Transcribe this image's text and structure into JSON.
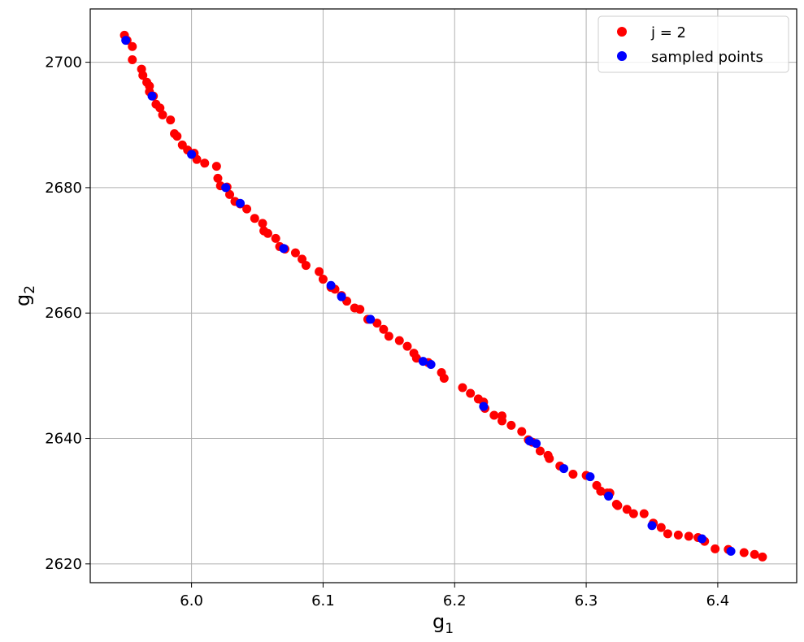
{
  "chart_data": {
    "type": "scatter",
    "title": "",
    "xlabel": "g",
    "xlabel_sub": "1",
    "ylabel": "g",
    "ylabel_sub": "2",
    "xlim": [
      5.923,
      6.46
    ],
    "ylim": [
      2617,
      2708.5
    ],
    "x_ticks": [
      6.0,
      6.1,
      6.2,
      6.3,
      6.4
    ],
    "x_tick_labels": [
      "6.0",
      "6.1",
      "6.2",
      "6.3",
      "6.4"
    ],
    "y_ticks": [
      2620,
      2640,
      2660,
      2680,
      2700
    ],
    "y_tick_labels": [
      "2620",
      "2640",
      "2660",
      "2680",
      "2700"
    ],
    "grid": true,
    "legend": "top-right",
    "series": [
      {
        "name": "j = 2",
        "color": "#ff0000",
        "points": [
          [
            5.949,
            2704.3
          ],
          [
            5.951,
            2703.5
          ],
          [
            5.955,
            2702.5
          ],
          [
            5.955,
            2700.4
          ],
          [
            5.962,
            2698.9
          ],
          [
            5.963,
            2697.9
          ],
          [
            5.966,
            2696.8
          ],
          [
            5.968,
            2696.2
          ],
          [
            5.968,
            2695.3
          ],
          [
            5.971,
            2694.6
          ],
          [
            5.973,
            2693.3
          ],
          [
            5.976,
            2692.7
          ],
          [
            5.978,
            2691.6
          ],
          [
            5.984,
            2690.8
          ],
          [
            5.987,
            2688.6
          ],
          [
            5.989,
            2688.2
          ],
          [
            5.993,
            2686.8
          ],
          [
            5.997,
            2686.0
          ],
          [
            6.002,
            2685.5
          ],
          [
            6.004,
            2684.5
          ],
          [
            6.01,
            2683.9
          ],
          [
            6.019,
            2683.4
          ],
          [
            6.02,
            2681.5
          ],
          [
            6.022,
            2680.3
          ],
          [
            6.027,
            2680.1
          ],
          [
            6.029,
            2678.9
          ],
          [
            6.033,
            2677.8
          ],
          [
            6.037,
            2677.4
          ],
          [
            6.042,
            2676.6
          ],
          [
            6.048,
            2675.1
          ],
          [
            6.054,
            2674.3
          ],
          [
            6.055,
            2673.1
          ],
          [
            6.058,
            2672.7
          ],
          [
            6.064,
            2671.9
          ],
          [
            6.067,
            2670.6
          ],
          [
            6.071,
            2670.2
          ],
          [
            6.079,
            2669.6
          ],
          [
            6.084,
            2668.6
          ],
          [
            6.087,
            2667.6
          ],
          [
            6.097,
            2666.6
          ],
          [
            6.1,
            2665.4
          ],
          [
            6.106,
            2664.1
          ],
          [
            6.109,
            2663.8
          ],
          [
            6.114,
            2662.8
          ],
          [
            6.118,
            2661.9
          ],
          [
            6.124,
            2660.8
          ],
          [
            6.128,
            2660.6
          ],
          [
            6.134,
            2659.0
          ],
          [
            6.141,
            2658.4
          ],
          [
            6.146,
            2657.4
          ],
          [
            6.15,
            2656.3
          ],
          [
            6.158,
            2655.6
          ],
          [
            6.164,
            2654.7
          ],
          [
            6.169,
            2653.6
          ],
          [
            6.171,
            2652.8
          ],
          [
            6.18,
            2652.1
          ],
          [
            6.19,
            2650.5
          ],
          [
            6.192,
            2649.6
          ],
          [
            6.206,
            2648.1
          ],
          [
            6.212,
            2647.2
          ],
          [
            6.218,
            2646.3
          ],
          [
            6.222,
            2645.8
          ],
          [
            6.223,
            2644.8
          ],
          [
            6.23,
            2643.7
          ],
          [
            6.236,
            2643.6
          ],
          [
            6.236,
            2642.8
          ],
          [
            6.243,
            2642.1
          ],
          [
            6.251,
            2641.1
          ],
          [
            6.256,
            2639.8
          ],
          [
            6.259,
            2639.4
          ],
          [
            6.265,
            2638.0
          ],
          [
            6.271,
            2637.3
          ],
          [
            6.272,
            2636.8
          ],
          [
            6.28,
            2635.6
          ],
          [
            6.29,
            2634.3
          ],
          [
            6.3,
            2634.1
          ],
          [
            6.308,
            2632.5
          ],
          [
            6.311,
            2631.6
          ],
          [
            6.316,
            2631.3
          ],
          [
            6.318,
            2631.3
          ],
          [
            6.323,
            2629.5
          ],
          [
            6.324,
            2629.3
          ],
          [
            6.331,
            2628.7
          ],
          [
            6.336,
            2628.0
          ],
          [
            6.344,
            2628.0
          ],
          [
            6.351,
            2626.5
          ],
          [
            6.357,
            2625.8
          ],
          [
            6.362,
            2624.8
          ],
          [
            6.37,
            2624.6
          ],
          [
            6.378,
            2624.4
          ],
          [
            6.385,
            2624.2
          ],
          [
            6.39,
            2623.6
          ],
          [
            6.398,
            2622.4
          ],
          [
            6.408,
            2622.3
          ],
          [
            6.42,
            2621.8
          ],
          [
            6.428,
            2621.5
          ],
          [
            6.434,
            2621.1
          ]
        ]
      },
      {
        "name": "sampled points",
        "color": "#0000ff",
        "points": [
          [
            5.95,
            2703.5
          ],
          [
            5.97,
            2694.6
          ],
          [
            6.0,
            2685.3
          ],
          [
            6.026,
            2680.0
          ],
          [
            6.037,
            2677.5
          ],
          [
            6.07,
            2670.3
          ],
          [
            6.106,
            2664.4
          ],
          [
            6.114,
            2662.6
          ],
          [
            6.136,
            2659.0
          ],
          [
            6.176,
            2652.3
          ],
          [
            6.182,
            2651.8
          ],
          [
            6.222,
            2645.1
          ],
          [
            6.257,
            2639.6
          ],
          [
            6.262,
            2639.2
          ],
          [
            6.283,
            2635.2
          ],
          [
            6.303,
            2633.9
          ],
          [
            6.317,
            2630.8
          ],
          [
            6.35,
            2626.1
          ],
          [
            6.388,
            2624.0
          ],
          [
            6.41,
            2622.0
          ]
        ]
      }
    ]
  }
}
